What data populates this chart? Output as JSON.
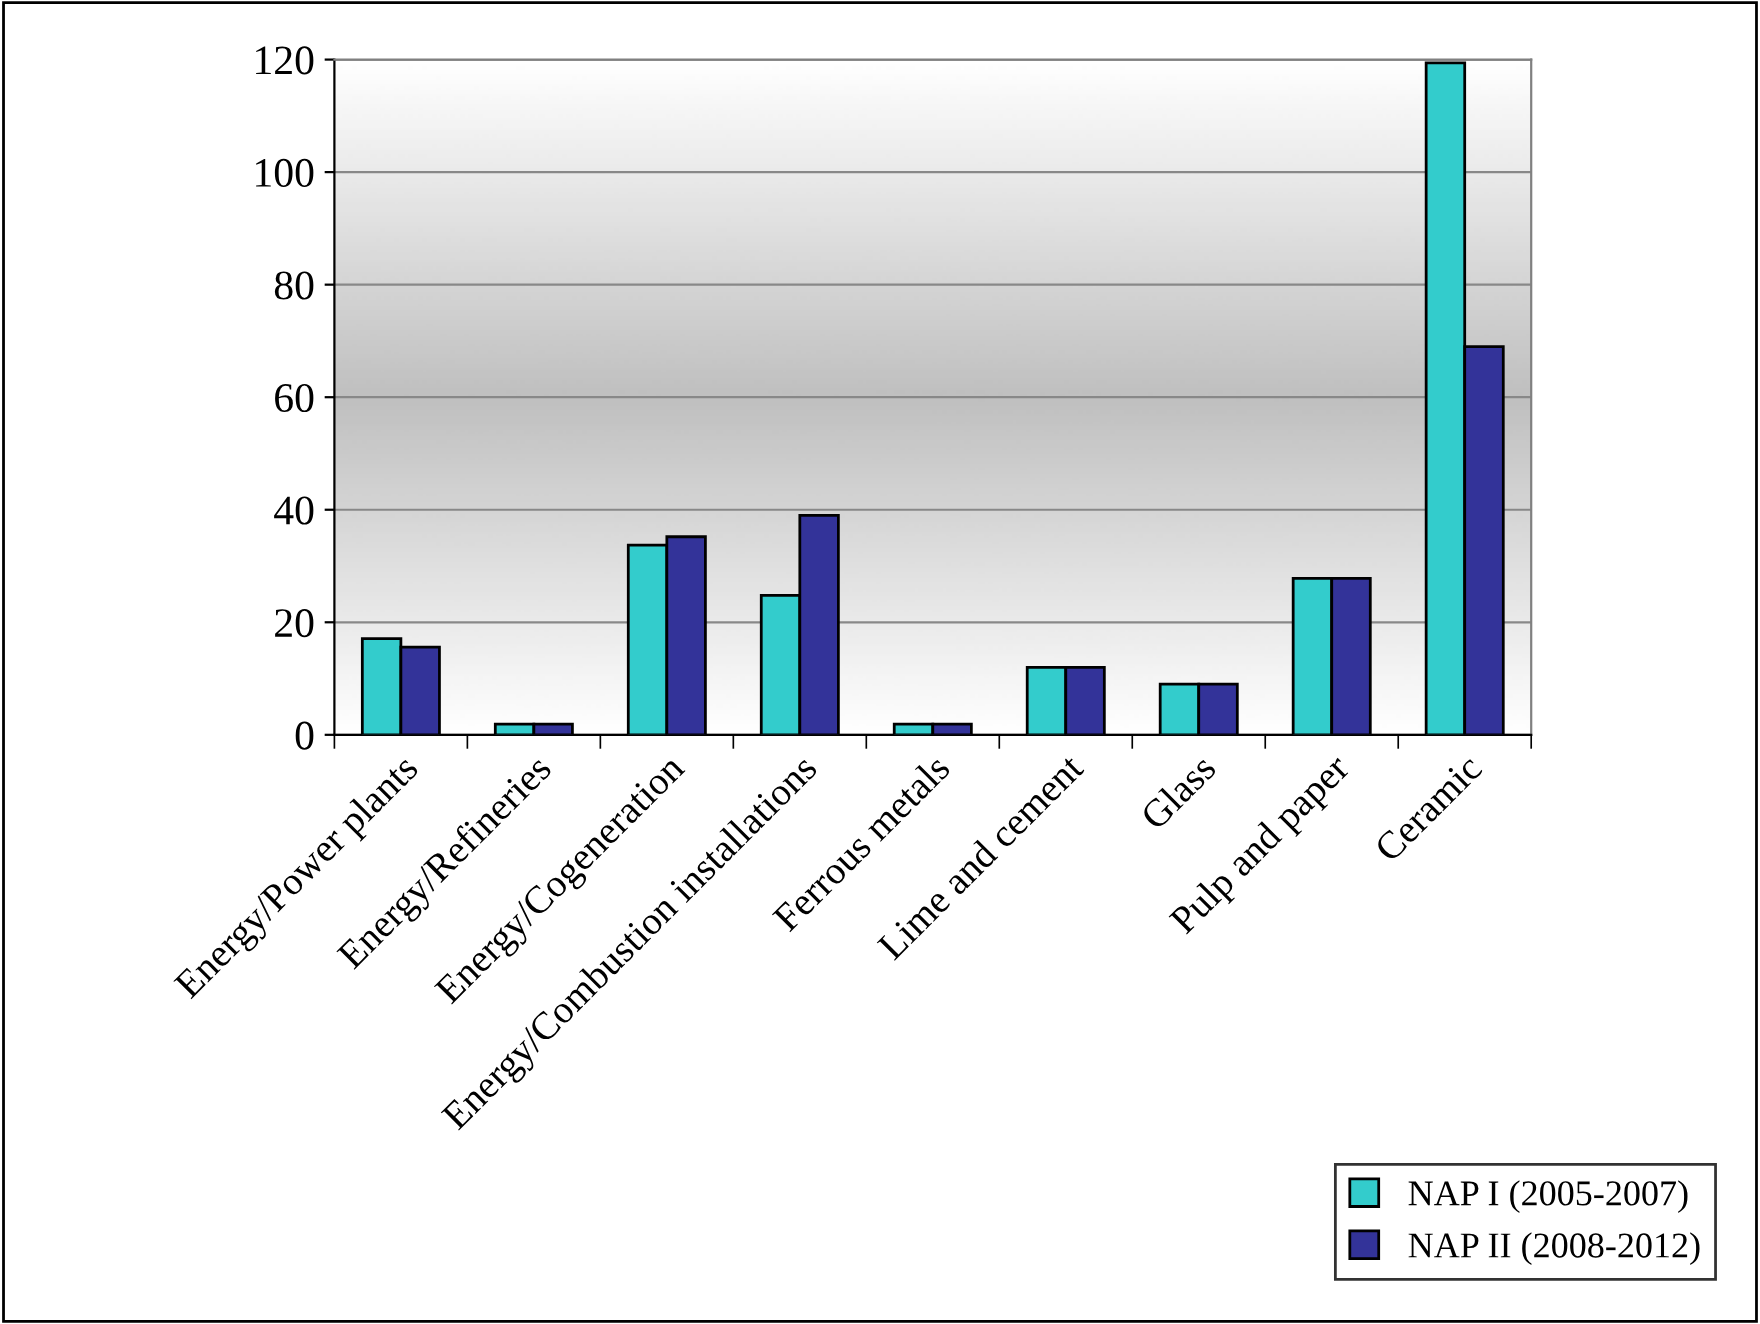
{
  "chart_data": {
    "type": "bar",
    "categories": [
      "Energy/Power plants",
      "Energy/Refineries",
      "Energy/Cogeneration",
      "Energy/Combustion installations",
      "Ferrous metals",
      "Lime and cement",
      "Glass",
      "Pulp and paper",
      "Ceramic"
    ],
    "series": [
      {
        "name": "NAP I (2005-2007)",
        "color": "#33cccc",
        "values": [
          17.1,
          1.9,
          33.7,
          24.8,
          1.9,
          12,
          9,
          27.8,
          119.4
        ]
      },
      {
        "name": "NAP II (2008-2012)",
        "color": "#333399",
        "values": [
          15.6,
          1.9,
          35.2,
          39,
          1.9,
          12,
          9,
          27.8,
          69
        ]
      }
    ],
    "ylim": [
      0,
      120
    ],
    "yticks": [
      0,
      20,
      40,
      60,
      80,
      100,
      120
    ],
    "grid": "y",
    "legend": "bottom right"
  }
}
